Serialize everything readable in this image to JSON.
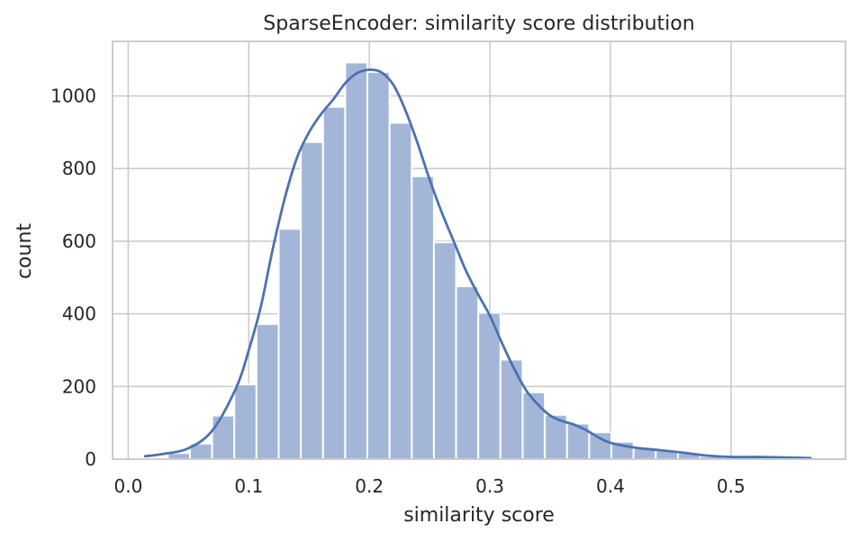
{
  "chart_data": {
    "type": "histogram",
    "title": "SparseEncoder: similarity score distribution",
    "xlabel": "similarity score",
    "ylabel": "count",
    "xlim": [
      -0.013,
      0.595
    ],
    "ylim": [
      0,
      1150
    ],
    "xticks": [
      0.0,
      0.1,
      0.2,
      0.3,
      0.4,
      0.5
    ],
    "xtick_labels": [
      "0.0",
      "0.1",
      "0.2",
      "0.3",
      "0.4",
      "0.5"
    ],
    "yticks": [
      0,
      200,
      400,
      600,
      800,
      1000
    ],
    "ytick_labels": [
      "0",
      "200",
      "400",
      "600",
      "800",
      "1000"
    ],
    "grid": true,
    "bar_color": "#a4b6d8",
    "line_color": "#4c72b0",
    "bin_edges": [
      0.0144,
      0.0328,
      0.0512,
      0.0696,
      0.088,
      0.1064,
      0.1248,
      0.1432,
      0.1616,
      0.18,
      0.1984,
      0.2168,
      0.2352,
      0.2536,
      0.272,
      0.2904,
      0.3088,
      0.3272,
      0.3456,
      0.364,
      0.3824,
      0.4008,
      0.4192,
      0.4376,
      0.456,
      0.4744,
      0.4928,
      0.5112,
      0.5296,
      0.548,
      0.5664
    ],
    "counts": [
      5,
      17,
      43,
      120,
      206,
      372,
      634,
      873,
      970,
      1092,
      1066,
      926,
      779,
      597,
      476,
      403,
      274,
      184,
      122,
      98,
      74,
      48,
      30,
      24,
      17,
      8,
      5,
      5,
      3,
      3
    ],
    "kde": {
      "x": [
        0.014,
        0.03,
        0.05,
        0.07,
        0.09,
        0.1,
        0.11,
        0.12,
        0.13,
        0.14,
        0.15,
        0.16,
        0.17,
        0.18,
        0.19,
        0.2,
        0.21,
        0.22,
        0.23,
        0.24,
        0.25,
        0.26,
        0.27,
        0.28,
        0.29,
        0.3,
        0.31,
        0.32,
        0.33,
        0.34,
        0.35,
        0.36,
        0.37,
        0.38,
        0.39,
        0.4,
        0.42,
        0.44,
        0.46,
        0.48,
        0.5,
        0.52,
        0.54,
        0.566
      ],
      "y": [
        8,
        15,
        30,
        80,
        200,
        300,
        420,
        580,
        720,
        830,
        900,
        950,
        990,
        1035,
        1063,
        1072,
        1065,
        1030,
        960,
        870,
        770,
        680,
        600,
        520,
        455,
        395,
        320,
        250,
        190,
        150,
        120,
        105,
        95,
        80,
        60,
        45,
        32,
        25,
        18,
        10,
        6,
        6,
        5,
        3
      ]
    }
  }
}
